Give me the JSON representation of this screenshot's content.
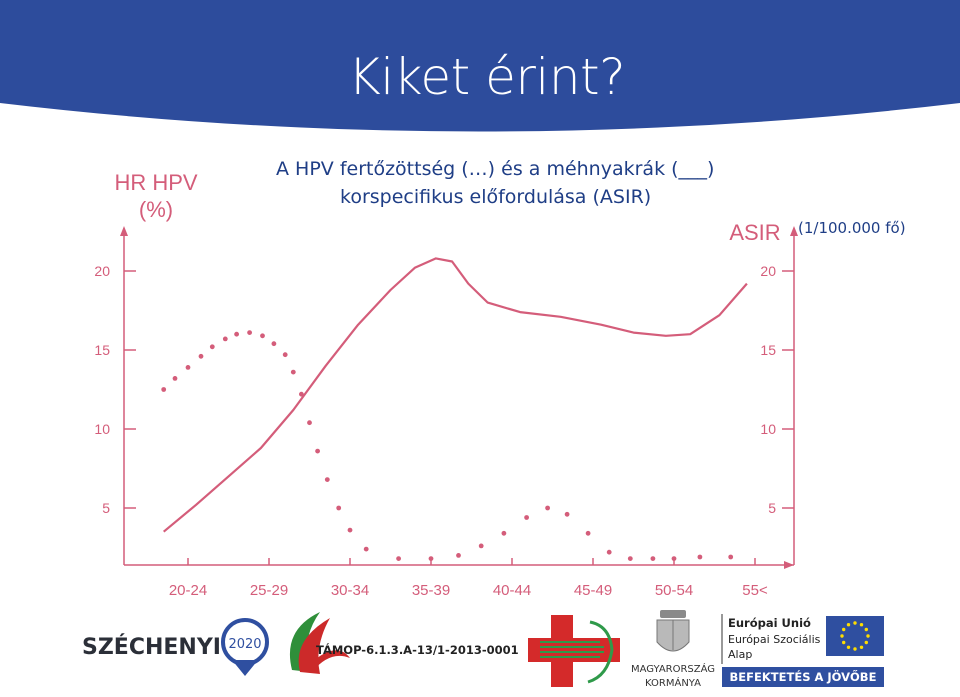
{
  "slide": {
    "title": "Kiket érint?",
    "chart_title_line1": "A HPV fertőzöttség (…) és a méhnyakrák (___)",
    "chart_title_line2": "korspecifikus előfordulása (ASIR)",
    "unit_note": "(1/100.000 fő)"
  },
  "chart_data": {
    "type": "line",
    "left_axis_label_line1": "HR HPV",
    "left_axis_label_line2": "(%)",
    "right_axis_label": "ASIR",
    "categories": [
      "20-24",
      "25-29",
      "30-34",
      "35-39",
      "40-44",
      "45-49",
      "50-54",
      "55<"
    ],
    "yticks": [
      5,
      10,
      15,
      20
    ],
    "ylim": [
      0,
      22
    ],
    "series": [
      {
        "style": "dotted",
        "axis": "left",
        "x": [
          20.5,
          21.2,
          22.0,
          22.8,
          23.5,
          24.3,
          25.0,
          25.8,
          26.6,
          27.3,
          28.0,
          28.5,
          29.0,
          29.5,
          30.0,
          30.6,
          31.3,
          32.0,
          33.0,
          35.0,
          37.0,
          38.7,
          40.1,
          41.5,
          42.9,
          44.2,
          45.4,
          46.7,
          48.0,
          49.3,
          50.7,
          52.0,
          53.6,
          55.5
        ],
        "y": [
          12.5,
          13.2,
          13.9,
          14.6,
          15.2,
          15.7,
          16.0,
          16.1,
          15.9,
          15.4,
          14.7,
          13.6,
          12.2,
          10.4,
          8.6,
          6.8,
          5.0,
          3.6,
          2.4,
          1.8,
          1.8,
          2.0,
          2.6,
          3.4,
          4.4,
          5.0,
          4.6,
          3.4,
          2.2,
          1.8,
          1.8,
          1.8,
          1.9,
          1.9
        ]
      },
      {
        "style": "solid",
        "axis": "right",
        "x": [
          20.5,
          22.5,
          24.5,
          26.5,
          28.5,
          30.5,
          32.5,
          34.5,
          36.0,
          37.3,
          38.3,
          39.3,
          40.5,
          42.5,
          45.0,
          47.5,
          49.5,
          51.5,
          53.0,
          54.8,
          56.5
        ],
        "y": [
          3.5,
          5.2,
          7.0,
          8.8,
          11.2,
          14.0,
          16.6,
          18.8,
          20.2,
          20.8,
          20.6,
          19.2,
          18.0,
          17.4,
          17.1,
          16.6,
          16.1,
          15.9,
          16.0,
          17.2,
          19.2
        ]
      }
    ]
  },
  "logos": {
    "szechenyi_word": "SZÉCHENYI",
    "szechenyi_year": "2020",
    "tamop_code": "TÁMOP-6.1.3.A-13/1-2013-0001",
    "gov_line1": "MAGYARORSZÁG",
    "gov_line2": "KORMÁNYA",
    "eu_line1": "Európai Unió",
    "eu_line2": "Európai Szociális",
    "eu_line3": "Alap",
    "eu_banner": "BEFEKTETÉS A JÖVŐBE"
  },
  "colors": {
    "header_blue": "#2d4c9c",
    "chart_pink": "#d45d7a",
    "title_blue": "#1f3e86",
    "eu_blue": "#2f4fa0",
    "star_yellow": "#ffdd00"
  }
}
